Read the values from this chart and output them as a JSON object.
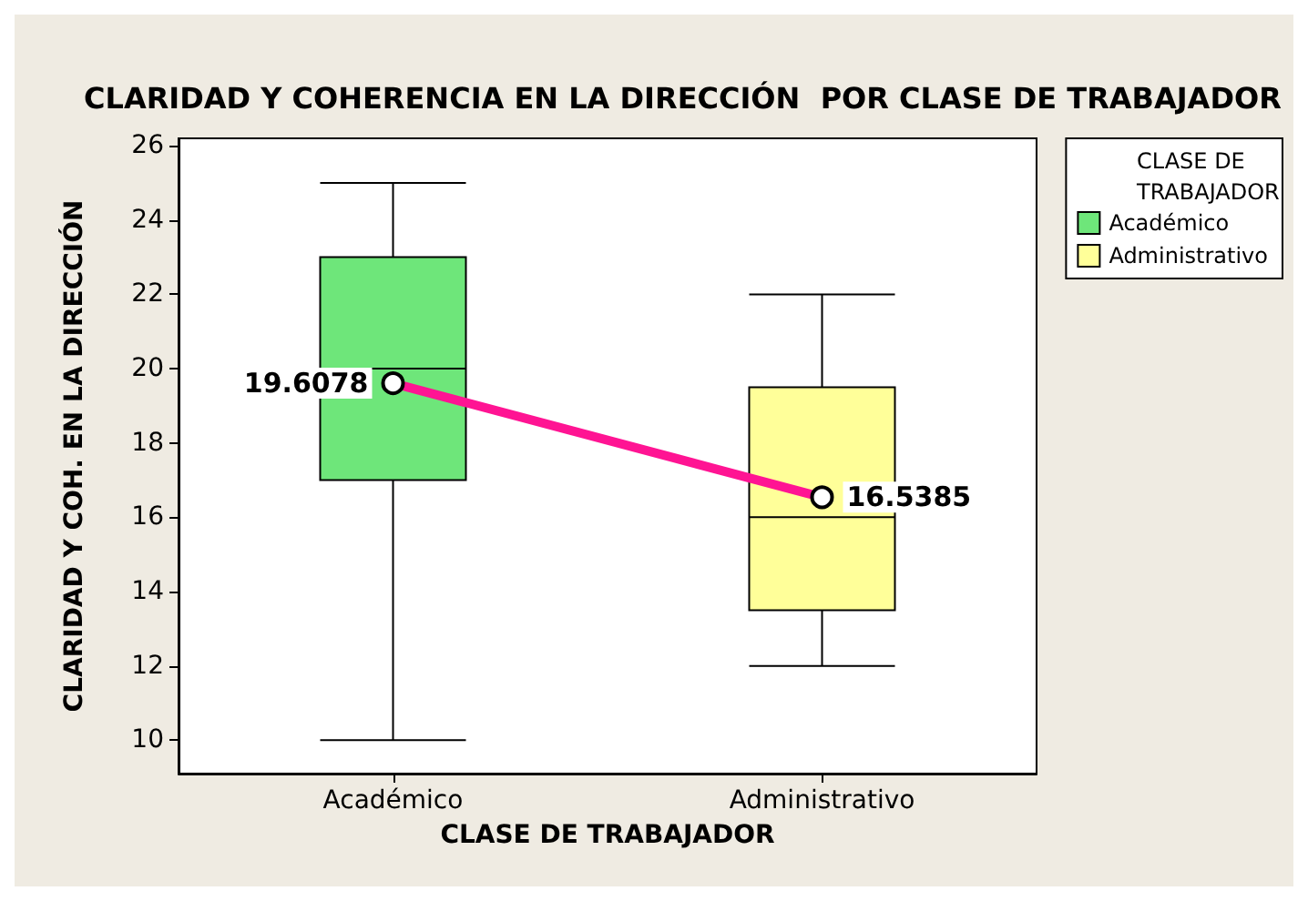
{
  "chart_data": {
    "type": "box",
    "title": "CLARIDAD Y COHERENCIA EN LA DIRECCIÓN  POR CLASE DE TRABAJADOR",
    "xlabel": "CLASE DE TRABAJADOR",
    "ylabel": "CLARIDAD Y COH. EN LA DIRECCIÓN",
    "legend_title": "CLASE DE TRABAJADOR",
    "legend": "right",
    "categories": [
      "Académico",
      "Administrativo"
    ],
    "series": [
      {
        "name": "Académico",
        "color": "#6ee67a",
        "boxes": [
          {
            "low": 10,
            "q1": 17,
            "median": 20,
            "q3": 23,
            "high": 25
          },
          null
        ]
      },
      {
        "name": "Administrativo",
        "color": "#ffff99",
        "boxes": [
          null,
          {
            "low": 12,
            "q1": 13.5,
            "median": 16,
            "q3": 19.5,
            "high": 22
          }
        ]
      },
      {
        "type": "line",
        "color": "#ff1493",
        "values": [
          19.6078,
          16.5385
        ],
        "value_labels": [
          "19.6078",
          "16.5385"
        ],
        "marker": "circle"
      }
    ],
    "ylim": [
      9.1,
      26.2
    ],
    "yticks": [
      10,
      12,
      14,
      16,
      18,
      20,
      22,
      24,
      26
    ],
    "grid": false
  }
}
